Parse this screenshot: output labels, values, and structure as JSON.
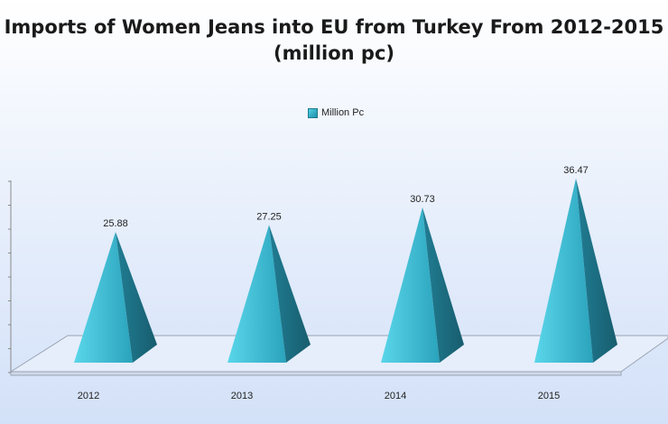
{
  "chart_data": {
    "type": "bar",
    "title": "Imports of Women Jeans into EU from Turkey From 2012-2015 (million pc)",
    "categories": [
      "2012",
      "2013",
      "2014",
      "2015"
    ],
    "series": [
      {
        "name": "Million Pc",
        "values": [
          25.88,
          27.25,
          30.73,
          36.47
        ]
      }
    ],
    "value_labels": [
      "25.88",
      "27.25",
      "30.73",
      "36.47"
    ],
    "shape": "pyramid",
    "legend_position": "top",
    "colors": {
      "face_light": "#4dcfe2",
      "face_mid": "#2aa7bf",
      "face_dark": "#1b6e82"
    }
  }
}
